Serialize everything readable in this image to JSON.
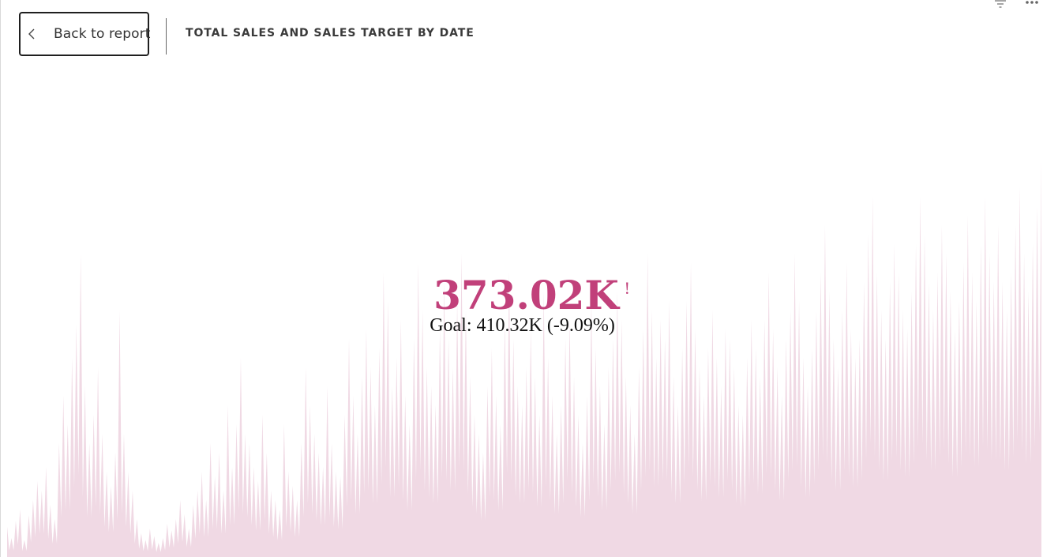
{
  "header": {
    "back_label": "Back to report",
    "title": "TOTAL SALES AND SALES TARGET BY DATE",
    "back_icon": "chevron-left-icon",
    "filter_icon": "filter-icon",
    "more_icon": "more-options-icon"
  },
  "kpi": {
    "value": "373.02K",
    "status_indicator": "!",
    "goal_text": "Goal: 410.32K (-9.09%)",
    "value_color": "#c1407a"
  },
  "chart_data": {
    "type": "area",
    "title": "TOTAL SALES AND SALES TARGET BY DATE",
    "xlabel": "",
    "ylabel": "",
    "color": "#f0d9e4",
    "grid": false,
    "legend": "none",
    "y": [
      32,
      20,
      38,
      50,
      18,
      44,
      60,
      80,
      70,
      95,
      55,
      40,
      120,
      170,
      140,
      210,
      245,
      320,
      180,
      120,
      150,
      200,
      130,
      90,
      75,
      110,
      260,
      130,
      90,
      70,
      40,
      25,
      18,
      30,
      22,
      15,
      20,
      35,
      28,
      40,
      60,
      45,
      30,
      55,
      70,
      90,
      60,
      120,
      85,
      110,
      70,
      160,
      95,
      140,
      210,
      130,
      120,
      95,
      80,
      150,
      110,
      70,
      60,
      50,
      140,
      90,
      75,
      60,
      120,
      200,
      160,
      130,
      110,
      95,
      180,
      120,
      90,
      85,
      150,
      230,
      170,
      130,
      190,
      240,
      200,
      160,
      220,
      300,
      270,
      180,
      210,
      250,
      170,
      140,
      230,
      310,
      260,
      200,
      180,
      160,
      240,
      290,
      230,
      200,
      270,
      320,
      260,
      190,
      150,
      130,
      110,
      180,
      220,
      170,
      140,
      250,
      300,
      230,
      180,
      160,
      200,
      240,
      190,
      150,
      280,
      210,
      170,
      130,
      160,
      230,
      250,
      190,
      150,
      120,
      170,
      270,
      220,
      180,
      140,
      200,
      230,
      280,
      250,
      190,
      160,
      130,
      200,
      240,
      320,
      260,
      210,
      250,
      230,
      270,
      190,
      160,
      220,
      270,
      310,
      240,
      200,
      170,
      220,
      260,
      210,
      180,
      240,
      230,
      200,
      160,
      150,
      210,
      250,
      220,
      190,
      250,
      300,
      240,
      200,
      170,
      230,
      260,
      320,
      270,
      210,
      180,
      220,
      260,
      300,
      350,
      280,
      230,
      200,
      260,
      310,
      240,
      210,
      230,
      290,
      340,
      380,
      300,
      260,
      230,
      290,
      330,
      300,
      260,
      240,
      280,
      330,
      380,
      340,
      290,
      260,
      300,
      350,
      320,
      280,
      240,
      270,
      310,
      360,
      300,
      270,
      330,
      380,
      320,
      290,
      350,
      290,
      260,
      300,
      350,
      390,
      320,
      280,
      330,
      370,
      420
    ]
  }
}
